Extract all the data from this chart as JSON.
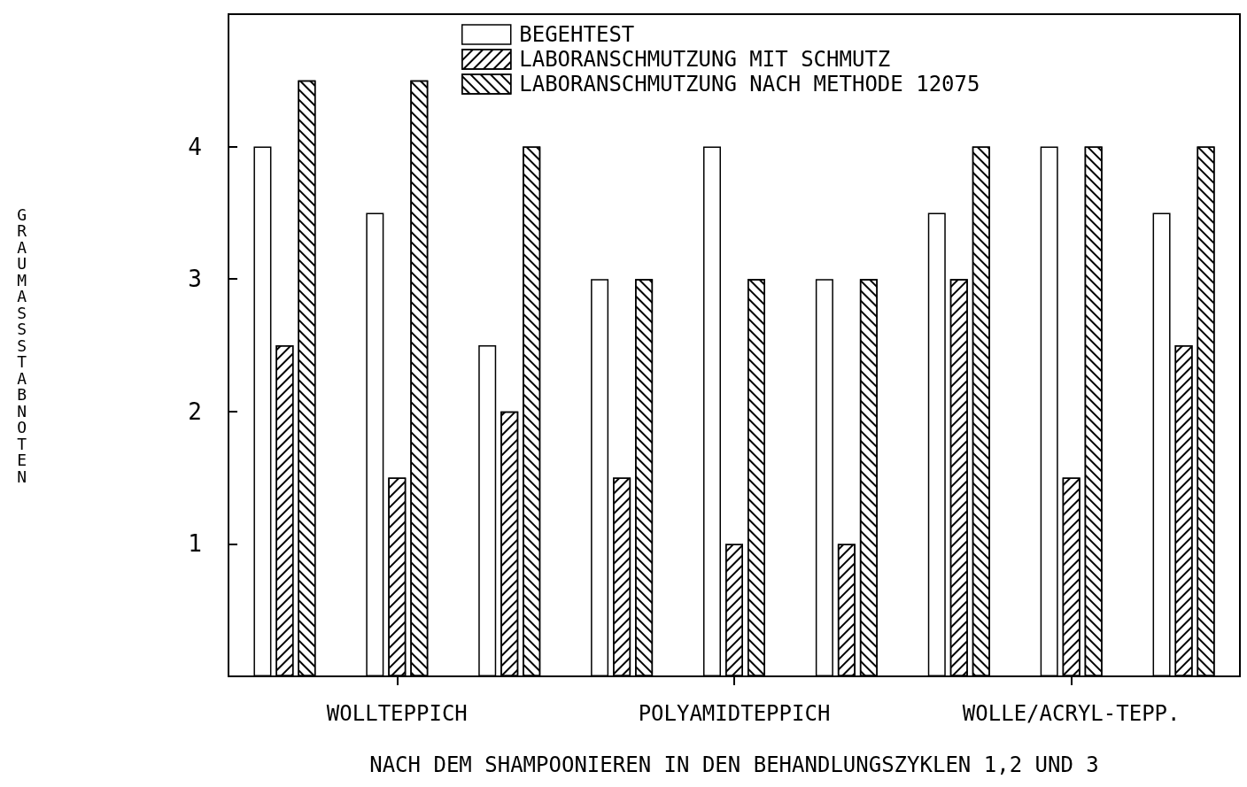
{
  "chart_data": {
    "type": "bar",
    "xlabel": "NACH DEM SHAMPOONIEREN IN DEN BEHANDLUNGSZYKLEN 1,2 UND 3",
    "ylabel": "GRAUMASSSTABNOTEN",
    "categories": [
      null,
      "WOLLTEPPICH",
      null,
      null,
      "POLYAMIDTEPPICH",
      null,
      null,
      "WOLLE/ACRYL-TEPP.",
      null
    ],
    "series": [
      {
        "name": "BEGEHTEST",
        "color": "#ffffff",
        "values": [
          4,
          3.5,
          2.5,
          3,
          4,
          3,
          3.5,
          4,
          3.5
        ]
      },
      {
        "name": "LABORANSCHMUTZUNG MIT SCHMUTZ",
        "color": "#000000",
        "values": [
          2.5,
          1.5,
          2,
          1.5,
          1,
          1,
          3,
          1.5,
          2.5
        ]
      },
      {
        "name": "LABORANSCHMUTZUNG NACH METHODE 12075",
        "color": "#000000",
        "values": [
          4.5,
          4.5,
          4,
          3,
          3,
          3,
          4,
          4,
          4
        ]
      }
    ],
    "ylim": [
      0,
      5
    ],
    "yticks": [
      1,
      2,
      3,
      4
    ],
    "grid": false,
    "legend": "top"
  }
}
